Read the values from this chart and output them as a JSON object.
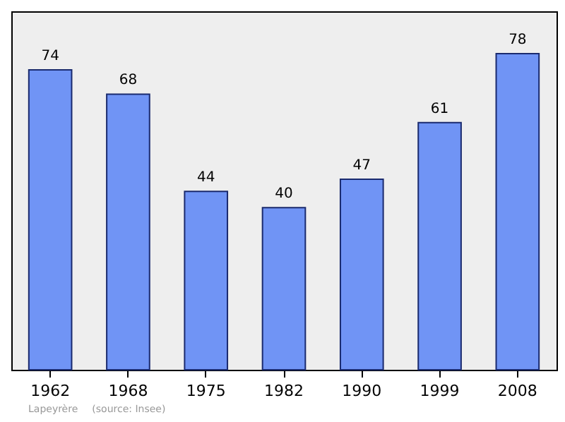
{
  "chart_data": {
    "type": "bar",
    "categories": [
      "1962",
      "1968",
      "1975",
      "1982",
      "1990",
      "1999",
      "2008"
    ],
    "values": [
      74,
      68,
      44,
      40,
      47,
      61,
      78
    ],
    "color": "#7094f5",
    "data_labels": true,
    "grid": false,
    "annotations": [
      "Lapeyrère",
      "(source: Insee)"
    ]
  }
}
